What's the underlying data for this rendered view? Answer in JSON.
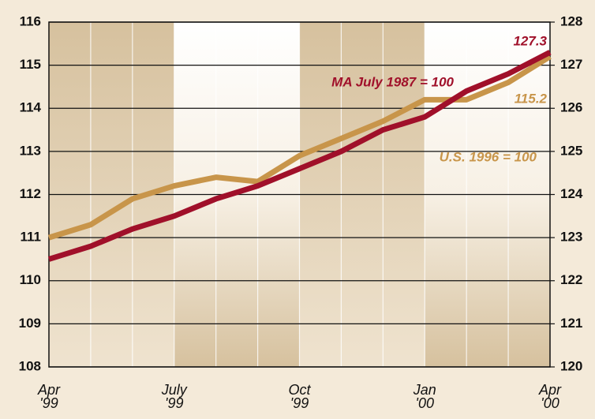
{
  "chart_data": {
    "type": "line",
    "categories": [
      "Apr\n'99",
      null,
      null,
      "July\n'99",
      null,
      null,
      "Oct\n'99",
      null,
      null,
      "Jan\n'00",
      null,
      null,
      "Apr\n'00"
    ],
    "series": [
      {
        "name": "U.S. 1996 = 100",
        "color": "#c8954a",
        "axis": "y",
        "values": [
          111.0,
          111.3,
          111.9,
          112.2,
          112.4,
          112.3,
          112.9,
          113.3,
          113.7,
          114.2,
          114.2,
          114.6,
          115.2
        ]
      },
      {
        "name": "MA July 1987 = 100",
        "color": "#a0102a",
        "axis": "y2",
        "values": [
          122.5,
          122.8,
          123.2,
          123.5,
          123.9,
          124.2,
          124.6,
          125.0,
          125.5,
          125.8,
          126.4,
          126.8,
          127.3
        ]
      }
    ],
    "ylim": [
      108,
      116
    ],
    "yticks": [
      108,
      109,
      110,
      111,
      112,
      113,
      114,
      115,
      116
    ],
    "y2lim": [
      120,
      128
    ],
    "y2ticks": [
      120,
      121,
      122,
      123,
      124,
      125,
      126,
      127,
      128
    ],
    "grid": true
  }
}
